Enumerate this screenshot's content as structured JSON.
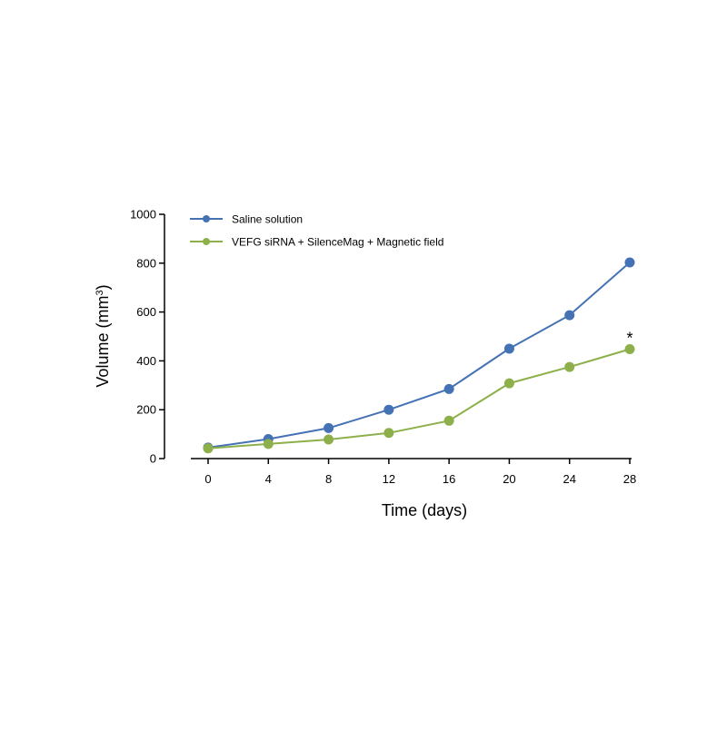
{
  "colors": {
    "series_1": "#4472b4",
    "series_2": "#8db04a",
    "axis": "#000000"
  },
  "chart_data": {
    "type": "line",
    "title": "",
    "xlabel": "Time (days)",
    "ylabel_main": "Volume (mm",
    "ylabel_sup": "3",
    "ylabel_close": ")",
    "x": [
      0,
      4,
      8,
      12,
      16,
      20,
      24,
      28
    ],
    "x_ticks": [
      "0",
      "4",
      "8",
      "12",
      "16",
      "20",
      "24",
      "28"
    ],
    "y_ticks": [
      "0",
      "200",
      "400",
      "600",
      "800",
      "1000"
    ],
    "xlim": [
      0,
      28
    ],
    "ylim": [
      0,
      1000
    ],
    "grid": false,
    "legend_position": "top-left",
    "series": [
      {
        "name": "Saline solution",
        "values": [
          45,
          80,
          125,
          200,
          285,
          450,
          587,
          803
        ]
      },
      {
        "name": "VEFG siRNA + SilenceMag + Magnetic field",
        "values": [
          42,
          60,
          78,
          105,
          155,
          308,
          375,
          448
        ]
      }
    ],
    "annotations": [
      {
        "text": "*",
        "x": 28,
        "y": 448
      }
    ]
  }
}
